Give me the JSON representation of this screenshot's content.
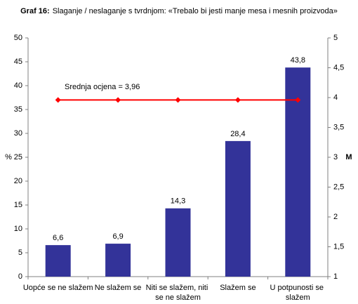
{
  "chart_data": {
    "type": "bar",
    "title_prefix": "Graf 16:",
    "title": "Slaganje / neslaganje s tvrdnjom: «Trebalo bi jesti manje mesa i mesnih proizvoda»",
    "y_label": "%",
    "y2_label": "M",
    "annotation": "Srednja ocjena = 3,96",
    "categories": [
      "Uopće se ne slažem",
      "Ne slažem se",
      "Niti se slažem, niti se ne slažem",
      "Slažem se",
      "U potpunosti se slažem"
    ],
    "series": [
      {
        "type": "bar",
        "color": "#333399",
        "values": [
          6.6,
          6.9,
          14.3,
          28.4,
          43.8
        ],
        "value_labels": [
          "6,6",
          "6,9",
          "14,3",
          "28,4",
          "43,8"
        ]
      },
      {
        "type": "line",
        "axis": "y2",
        "color": "#ff0000",
        "values": [
          3.96,
          3.96,
          3.96,
          3.96,
          3.96
        ]
      }
    ],
    "ylim": [
      0,
      50
    ],
    "yticks": [
      0,
      5,
      10,
      15,
      20,
      25,
      30,
      35,
      40,
      45,
      50
    ],
    "y2lim": [
      1,
      5
    ],
    "y2ticks": [
      1,
      {
        "value": 1.5,
        "label": "1,5"
      },
      2,
      {
        "value": 2.5,
        "label": "2,5"
      },
      3,
      {
        "value": 3.5,
        "label": "3,5"
      },
      4,
      {
        "value": 4.5,
        "label": "4,5"
      },
      5
    ],
    "grid": false
  }
}
